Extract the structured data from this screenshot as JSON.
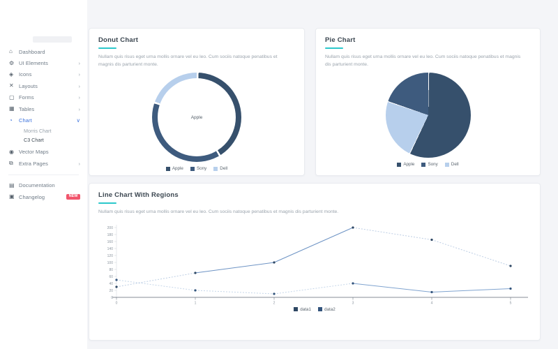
{
  "sidebar": {
    "items": [
      {
        "label": "Dashboard",
        "icon": "home-icon",
        "glyph": "⌂"
      },
      {
        "label": "UI Elements",
        "icon": "ui-elements-icon",
        "glyph": "⚙",
        "chevron": "›"
      },
      {
        "label": "Icons",
        "icon": "icons-icon",
        "glyph": "◈",
        "chevron": "›"
      },
      {
        "label": "Layouts",
        "icon": "layouts-icon",
        "glyph": "✕",
        "chevron": "›"
      },
      {
        "label": "Forms",
        "icon": "forms-icon",
        "glyph": "▢",
        "chevron": "›"
      },
      {
        "label": "Tables",
        "icon": "tables-icon",
        "glyph": "▦",
        "chevron": "›"
      },
      {
        "label": "Chart",
        "icon": "chart-icon",
        "glyph": "◔",
        "chevron": "∨",
        "active": true,
        "submenu": [
          {
            "label": "Morris Chart"
          },
          {
            "label": "C3 Chart",
            "active": true
          }
        ]
      },
      {
        "label": "Vector Maps",
        "icon": "vector-maps-icon",
        "glyph": "◉"
      },
      {
        "label": "Extra Pages",
        "icon": "extra-pages-icon",
        "glyph": "⧉",
        "chevron": "›"
      }
    ],
    "footer_items": [
      {
        "label": "Documentation",
        "icon": "documentation-icon",
        "glyph": "▤"
      },
      {
        "label": "Changelog",
        "icon": "changelog-icon",
        "glyph": "▣",
        "badge": "NEW"
      }
    ]
  },
  "cards": {
    "donut": {
      "title": "Donut Chart",
      "description": "Nullam quis risus eget urna mollis ornare vel eu leo. Cum sociis natoque penatibus et magnis dis parturient monte."
    },
    "pie": {
      "title": "Pie Chart",
      "description": "Nullam quis risus eget urna mollis ornare vel eu leo. Cum sociis natoque penatibus et magnis dis parturient monte."
    },
    "line": {
      "title": "Line Chart With Regions",
      "description": "Nullam quis risus eget urna mollis ornare vel eu leo. Cum sociis natoque penatibus et magnis dis parturient monte."
    }
  },
  "theme": {
    "accent_teal": "#2bc8cb",
    "sidebar_active_blue": "#3d73dd",
    "badge_red": "#f1556c",
    "dark_navy": "#36506c",
    "medium_blue": "#3e5b7e",
    "light_blue": "#b7cfec",
    "content_background": "#f4f5f8"
  },
  "chart_data": [
    {
      "id": "donut-chart",
      "type": "donut",
      "title": "Donut Chart",
      "center_label": "Apple",
      "slices": [
        {
          "label": "Apple",
          "value": 41,
          "color": "#36506c"
        },
        {
          "label": "Sony",
          "value": 39,
          "color": "#3e5b7e"
        },
        {
          "label": "Dell",
          "value": 20,
          "color": "#b7cfec"
        }
      ],
      "legend": [
        {
          "label": "Apple",
          "color": "#36506c"
        },
        {
          "label": "Sony",
          "color": "#3e5b7e"
        },
        {
          "label": "Dell",
          "color": "#b7cfec"
        }
      ],
      "legend_position": "bottom"
    },
    {
      "id": "pie-chart",
      "type": "pie",
      "title": "Pie Chart",
      "slices": [
        {
          "label": "Apple",
          "value": 57,
          "color": "#36506c"
        },
        {
          "label": "Dell",
          "value": 23,
          "color": "#b7cfec"
        },
        {
          "label": "Sony",
          "value": 20,
          "color": "#3e5b7e"
        }
      ],
      "legend": [
        {
          "label": "Apple",
          "color": "#36506c"
        },
        {
          "label": "Sony",
          "color": "#3e5b7e"
        },
        {
          "label": "Dell",
          "color": "#b7cfec"
        }
      ],
      "legend_position": "bottom"
    },
    {
      "id": "line-chart",
      "type": "line",
      "title": "Line Chart With Regions",
      "x": [
        0,
        1,
        2,
        3,
        4,
        5
      ],
      "ylim": [
        0,
        200
      ],
      "yticks": [
        0,
        20,
        40,
        60,
        80,
        100,
        120,
        140,
        160,
        180,
        200
      ],
      "grid": false,
      "series": [
        {
          "name": "data1",
          "values": [
            30,
            70,
            100,
            200,
            165,
            90
          ],
          "line_color": "#6d93c4",
          "point_color": "#2e4763",
          "regions": [
            {
              "start": 0,
              "end": 1,
              "style": "dashed"
            },
            {
              "start": 3,
              "end": 5,
              "style": "dashed"
            }
          ]
        },
        {
          "name": "data2",
          "values": [
            50,
            20,
            10,
            40,
            15,
            25
          ],
          "line_color": "#7fa3cf",
          "point_color": "#33547c",
          "regions": [
            {
              "start": 0,
              "end": 3,
              "style": "dashed"
            }
          ]
        }
      ],
      "legend": [
        {
          "label": "data1",
          "color": "#2e4763"
        },
        {
          "label": "data2",
          "color": "#33547c"
        }
      ],
      "legend_position": "bottom"
    }
  ]
}
